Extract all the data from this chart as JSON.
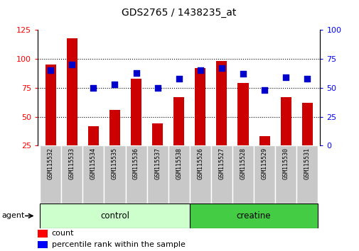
{
  "title": "GDS2765 / 1438235_at",
  "samples": [
    "GSM115532",
    "GSM115533",
    "GSM115534",
    "GSM115535",
    "GSM115536",
    "GSM115537",
    "GSM115538",
    "GSM115526",
    "GSM115527",
    "GSM115528",
    "GSM115529",
    "GSM115530",
    "GSM115531"
  ],
  "count_values": [
    95,
    118,
    42,
    56,
    83,
    44,
    67,
    92,
    98,
    79,
    33,
    67,
    62
  ],
  "percentile_values": [
    65,
    70,
    50,
    53,
    63,
    50,
    58,
    65,
    67,
    62,
    48,
    59,
    58
  ],
  "control_indices": [
    0,
    1,
    2,
    3,
    4,
    5,
    6
  ],
  "creatine_indices": [
    7,
    8,
    9,
    10,
    11,
    12
  ],
  "bar_color": "#cc0000",
  "dot_color": "#0000cc",
  "control_color": "#ccffcc",
  "creatine_color": "#44cc44",
  "ylim_left": [
    25,
    125
  ],
  "ylim_right": [
    0,
    100
  ],
  "left_ticks": [
    25,
    50,
    75,
    100,
    125
  ],
  "right_ticks": [
    0,
    25,
    50,
    75,
    100
  ],
  "grid_values": [
    50,
    75,
    100
  ],
  "legend_count_label": "count",
  "legend_pct_label": "percentile rank within the sample",
  "agent_label": "agent",
  "control_label": "control",
  "creatine_label": "creatine",
  "bar_width": 0.5,
  "dot_size": 40,
  "fig_width": 5.06,
  "fig_height": 3.54,
  "dpi": 100
}
